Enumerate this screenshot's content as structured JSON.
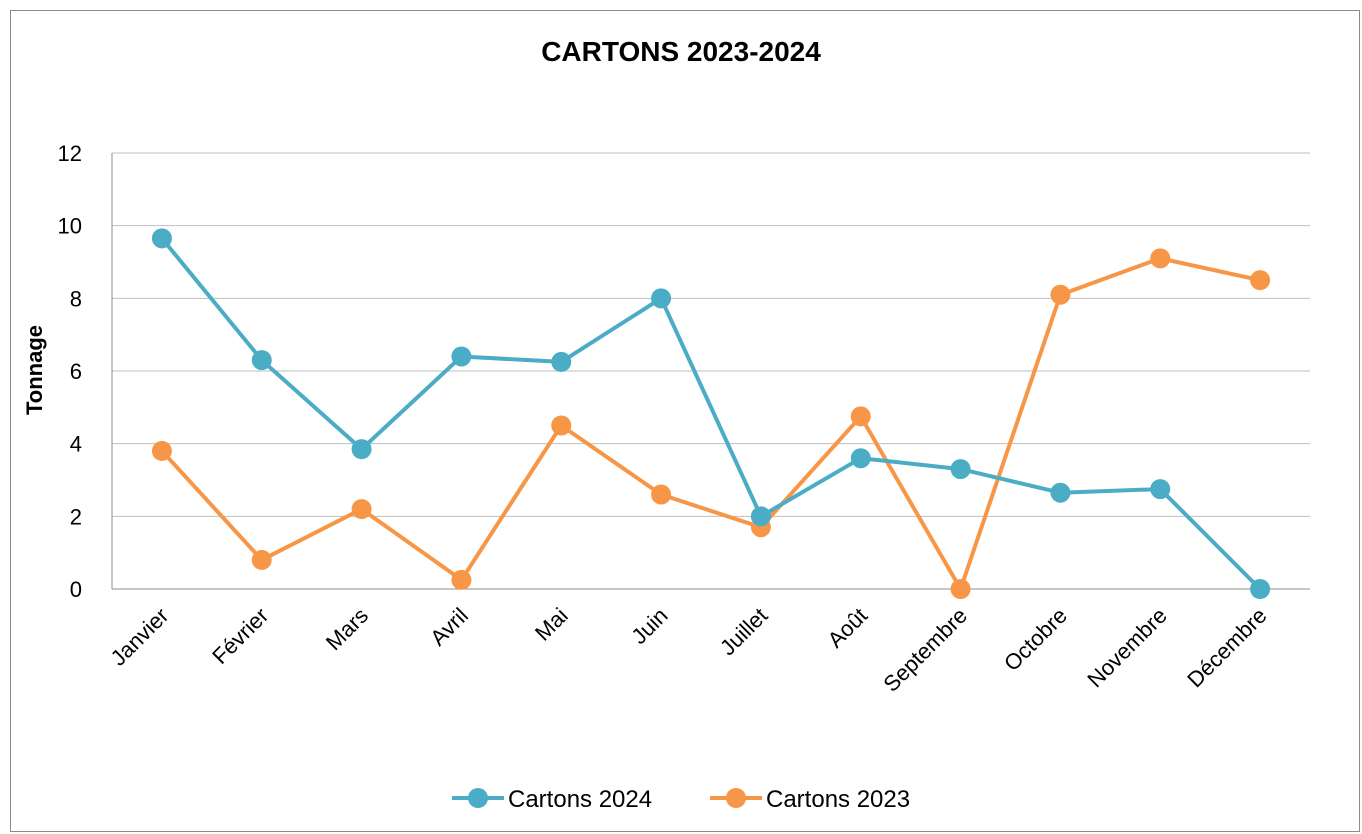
{
  "chart_data": {
    "type": "line",
    "title": "CARTONS 2023-2024",
    "ylabel": "Tonnage",
    "xlabel": "",
    "ylim": [
      0,
      12
    ],
    "yticks": [
      0,
      2,
      4,
      6,
      8,
      10,
      12
    ],
    "categories": [
      "Janvier",
      "Février",
      "Mars",
      "Avril",
      "Mai",
      "Juin",
      "Juillet",
      "Août",
      "Septembre",
      "Octobre",
      "Novembre",
      "Décembre"
    ],
    "grid": true,
    "legend_position": "bottom",
    "series": [
      {
        "name": "Cartons 2024",
        "color": "#4bacc6",
        "values": [
          9.65,
          6.3,
          3.85,
          6.4,
          6.25,
          8.0,
          2.0,
          3.6,
          3.3,
          2.65,
          2.75,
          0.0
        ]
      },
      {
        "name": "Cartons 2023",
        "color": "#f79646",
        "values": [
          3.8,
          0.8,
          2.2,
          0.25,
          4.5,
          2.6,
          1.7,
          4.75,
          0.0,
          8.1,
          9.1,
          8.5
        ]
      }
    ]
  }
}
